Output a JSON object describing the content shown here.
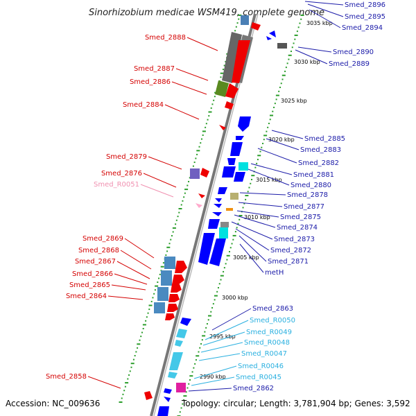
{
  "title": "Sinorhizobium medicae WSM419, complete genome",
  "footer": {
    "accession": "Accession: NC_009636",
    "topology": "Topology: circular; Length: 3,781,904 bp; Genes: 3,592"
  },
  "colors": {
    "backbone": "#888888",
    "forward_gene": "#ff0000",
    "reverse_gene": "#0000ff",
    "rna_reverse": "#44c8e8",
    "rna_forward": "#ffaacc",
    "tick_dots": "#2a9d2a",
    "label_red": "#d40000",
    "label_blue": "#1a1aa8",
    "label_cyan": "#2ab0e0",
    "label_pink": "#f090b0"
  },
  "scale_labels": [
    "3035 kbp",
    "3030 kbp",
    "3025 kbp",
    "3020 kbp",
    "3015 kbp",
    "3010 kbp",
    "3005 kbp",
    "3000 kbp",
    "2995 kbp",
    "2990 kbp"
  ],
  "left_labels": [
    {
      "text": "Smed_2888",
      "color": "label_red"
    },
    {
      "text": "Smed_2887",
      "color": "label_red"
    },
    {
      "text": "Smed_2886",
      "color": "label_red"
    },
    {
      "text": "Smed_2884",
      "color": "label_red"
    },
    {
      "text": "Smed_2879",
      "color": "label_red"
    },
    {
      "text": "Smed_2876",
      "color": "label_red"
    },
    {
      "text": "Smed_R0051",
      "color": "label_pink"
    },
    {
      "text": "Smed_2869",
      "color": "label_red"
    },
    {
      "text": "Smed_2868",
      "color": "label_red"
    },
    {
      "text": "Smed_2867",
      "color": "label_red"
    },
    {
      "text": "Smed_2866",
      "color": "label_red"
    },
    {
      "text": "Smed_2865",
      "color": "label_red"
    },
    {
      "text": "Smed_2864",
      "color": "label_red"
    },
    {
      "text": "Smed_2858",
      "color": "label_red"
    }
  ],
  "right_labels": [
    {
      "text": "Smed_2896",
      "color": "label_blue"
    },
    {
      "text": "Smed_2895",
      "color": "label_blue"
    },
    {
      "text": "Smed_2894",
      "color": "label_blue"
    },
    {
      "text": "Smed_2890",
      "color": "label_blue"
    },
    {
      "text": "Smed_2889",
      "color": "label_blue"
    },
    {
      "text": "Smed_2885",
      "color": "label_blue"
    },
    {
      "text": "Smed_2883",
      "color": "label_blue"
    },
    {
      "text": "Smed_2882",
      "color": "label_blue"
    },
    {
      "text": "Smed_2881",
      "color": "label_blue"
    },
    {
      "text": "Smed_2880",
      "color": "label_blue"
    },
    {
      "text": "Smed_2878",
      "color": "label_blue"
    },
    {
      "text": "Smed_2877",
      "color": "label_blue"
    },
    {
      "text": "Smed_2875",
      "color": "label_blue"
    },
    {
      "text": "Smed_2874",
      "color": "label_blue"
    },
    {
      "text": "Smed_2873",
      "color": "label_blue"
    },
    {
      "text": "Smed_2872",
      "color": "label_blue"
    },
    {
      "text": "Smed_2871",
      "color": "label_blue"
    },
    {
      "text": "metH",
      "color": "label_blue"
    },
    {
      "text": "Smed_2863",
      "color": "label_blue"
    },
    {
      "text": "Smed_R0050",
      "color": "label_cyan"
    },
    {
      "text": "Smed_R0049",
      "color": "label_cyan"
    },
    {
      "text": "Smed_R0048",
      "color": "label_cyan"
    },
    {
      "text": "Smed_R0047",
      "color": "label_cyan"
    },
    {
      "text": "Smed_R0046",
      "color": "label_cyan"
    },
    {
      "text": "Smed_R0045",
      "color": "label_cyan"
    },
    {
      "text": "Smed_2862",
      "color": "label_blue"
    }
  ]
}
